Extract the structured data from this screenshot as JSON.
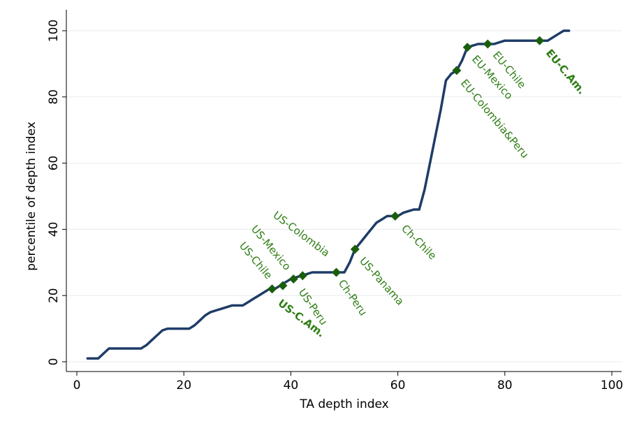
{
  "chart_data": {
    "type": "line",
    "xlabel": "TA depth index",
    "ylabel": "percentile of depth index",
    "xlim": [
      0,
      100
    ],
    "ylim": [
      0,
      100
    ],
    "x_ticks": [
      0,
      20,
      40,
      60,
      80,
      100
    ],
    "y_ticks": [
      0,
      20,
      40,
      60,
      80,
      100
    ],
    "grid": "horizontal",
    "line_color": "#1f3c67",
    "marker_color": "#1a5e0d",
    "label_color": "#2e7d14",
    "curve": {
      "x": [
        2,
        4,
        6,
        8,
        10,
        12,
        13,
        14,
        15,
        16,
        17,
        18,
        19,
        20,
        21,
        22,
        23,
        24,
        25,
        26,
        27,
        28,
        29,
        30,
        31,
        32,
        33,
        34,
        35,
        36,
        37,
        38,
        39,
        40,
        41,
        42,
        43,
        44,
        45,
        46,
        47,
        48,
        49,
        50,
        51,
        52,
        53,
        54,
        55,
        56,
        57,
        58,
        59,
        60,
        61,
        62,
        63,
        64,
        65,
        66,
        67,
        68,
        69,
        70,
        71,
        72,
        73,
        74,
        75,
        76,
        77,
        78,
        79,
        80,
        81,
        82,
        83,
        84,
        85,
        86,
        87,
        88,
        89,
        90,
        91,
        92
      ],
      "y": [
        1,
        1,
        4,
        4,
        4,
        4,
        5,
        6.5,
        8,
        9.5,
        10,
        10,
        10,
        10,
        10,
        11,
        12.5,
        14,
        15,
        15.5,
        16,
        16.5,
        17,
        17,
        17,
        18,
        19,
        20,
        21,
        22,
        22,
        23,
        24,
        25,
        25.5,
        26,
        26.5,
        27,
        27,
        27,
        27,
        27,
        27,
        27,
        30,
        34,
        36,
        38,
        40,
        42,
        43,
        44,
        44,
        44,
        45,
        45.5,
        46,
        46,
        52,
        60,
        68,
        76,
        85,
        87,
        88,
        91,
        95,
        95.5,
        96,
        96,
        96,
        96,
        96.5,
        97,
        97,
        97,
        97,
        97,
        97,
        97,
        97,
        97,
        98,
        99,
        100,
        100
      ]
    },
    "points": [
      {
        "label": "US-C.Am.",
        "x": 36.5,
        "y": 22,
        "bold": true
      },
      {
        "label": "US-Chile",
        "x": 38.5,
        "y": 23,
        "bold": false
      },
      {
        "label": "US-Mexico",
        "x": 40.5,
        "y": 25,
        "bold": false
      },
      {
        "label": "US-Peru",
        "x": 42.2,
        "y": 26,
        "bold": false
      },
      {
        "label": "US-Colombia",
        "x": 42.2,
        "y": 26,
        "bold": false
      },
      {
        "label": "Ch-Peru",
        "x": 48.5,
        "y": 27,
        "bold": false
      },
      {
        "label": "US-Panama",
        "x": 52,
        "y": 34,
        "bold": false
      },
      {
        "label": "Ch-Chile",
        "x": 59.5,
        "y": 44,
        "bold": false
      },
      {
        "label": "EU-Colombia&Peru",
        "x": 71,
        "y": 88,
        "bold": false
      },
      {
        "label": "EU-Mexico",
        "x": 73,
        "y": 95,
        "bold": false
      },
      {
        "label": "EU-Chile",
        "x": 76.8,
        "y": 96,
        "bold": false
      },
      {
        "label": "EU-C.Am.",
        "x": 86.5,
        "y": 97,
        "bold": true
      }
    ]
  }
}
